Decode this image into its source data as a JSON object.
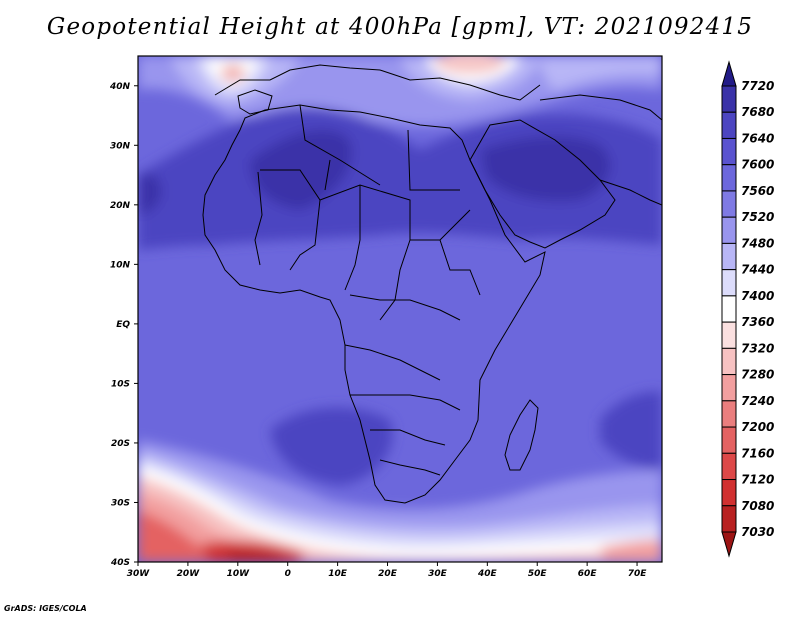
{
  "title": "Geopotential Height at 400hPa [gpm], VT: 2021092415",
  "credit": "GrADS: IGES/COLA",
  "map": {
    "lon_range": [
      -30,
      75
    ],
    "lat_range": [
      -40,
      45
    ],
    "lon_ticks": [
      "30W",
      "20W",
      "10W",
      "0",
      "10E",
      "20E",
      "30E",
      "40E",
      "50E",
      "60E",
      "70E"
    ],
    "lat_ticks": [
      "40N",
      "30N",
      "20N",
      "10N",
      "EQ",
      "10S",
      "20S",
      "30S",
      "40S"
    ],
    "grid": false
  },
  "colorbar": {
    "levels": [
      "7720",
      "7680",
      "7640",
      "7600",
      "7560",
      "7520",
      "7480",
      "7440",
      "7400",
      "7360",
      "7320",
      "7280",
      "7240",
      "7200",
      "7160",
      "7120",
      "7080",
      "7030"
    ],
    "colors": [
      "#221b87",
      "#3a32a8",
      "#4c45c1",
      "#5a53cf",
      "#6c67dc",
      "#7f7ae4",
      "#9995ee",
      "#b8b6f6",
      "#dcdcfb",
      "#ffffff",
      "#fbe0e0",
      "#f7c2c2",
      "#f29f9f",
      "#ea7e7e",
      "#e46262",
      "#dd4848",
      "#d13030",
      "#b82020",
      "#9c1414"
    ]
  }
}
